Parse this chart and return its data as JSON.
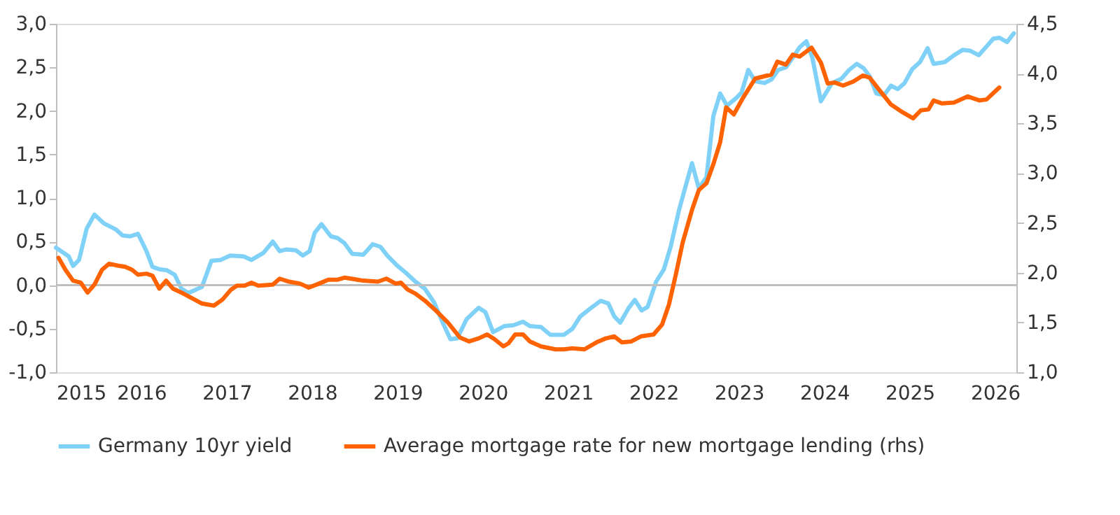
{
  "chart_data": {
    "type": "line",
    "legend": "bottom",
    "line_style": "solid",
    "marker": "none",
    "xlim": [
      2015,
      2026.25
    ],
    "xticks": [
      2015,
      2016,
      2017,
      2018,
      2019,
      2020,
      2021,
      2022,
      2023,
      2024,
      2025,
      2026
    ],
    "ylim": [
      -1.0,
      3.0
    ],
    "yticks": [
      {
        "value": -1.0,
        "label": "-1,0"
      },
      {
        "value": -0.5,
        "label": "-0,5"
      },
      {
        "value": 0.0,
        "label": "0,0"
      },
      {
        "value": 0.5,
        "label": "0,5"
      },
      {
        "value": 1.0,
        "label": "1,0"
      },
      {
        "value": 1.5,
        "label": "1,5"
      },
      {
        "value": 2.0,
        "label": "2,0"
      },
      {
        "value": 2.5,
        "label": "2,5"
      },
      {
        "value": 3.0,
        "label": "3,0"
      }
    ],
    "y2lim": [
      1.0,
      4.5
    ],
    "y2ticks": [
      {
        "value": 1.0,
        "label": "1,0"
      },
      {
        "value": 1.5,
        "label": "1,5"
      },
      {
        "value": 2.0,
        "label": "2,0"
      },
      {
        "value": 2.5,
        "label": "2,5"
      },
      {
        "value": 3.0,
        "label": "3,0"
      },
      {
        "value": 3.5,
        "label": "3,5"
      },
      {
        "value": 4.0,
        "label": "4,0"
      },
      {
        "value": 4.5,
        "label": "4,5"
      }
    ],
    "ref_lines": [
      {
        "axis": "y",
        "value": 0,
        "label": null,
        "color": "#bfbfbf"
      }
    ],
    "series": [
      {
        "name": "Germany 10yr yield",
        "color": "#7fd1f7",
        "x": [
          2015.0,
          2015.15,
          2015.2,
          2015.27,
          2015.36,
          2015.45,
          2015.56,
          2015.7,
          2015.78,
          2015.87,
          2015.96,
          2016.06,
          2016.13,
          2016.22,
          2016.3,
          2016.39,
          2016.47,
          2016.55,
          2016.71,
          2016.82,
          2016.93,
          2017.04,
          2017.2,
          2017.29,
          2017.43,
          2017.54,
          2017.62,
          2017.7,
          2017.81,
          2017.89,
          2017.97,
          2018.03,
          2018.11,
          2018.22,
          2018.3,
          2018.38,
          2018.47,
          2018.6,
          2018.71,
          2018.8,
          2018.88,
          2018.99,
          2019.1,
          2019.21,
          2019.32,
          2019.43,
          2019.53,
          2019.62,
          2019.7,
          2019.81,
          2019.95,
          2020.03,
          2020.12,
          2020.25,
          2020.36,
          2020.47,
          2020.55,
          2020.68,
          2020.79,
          2020.95,
          2021.05,
          2021.14,
          2021.27,
          2021.38,
          2021.47,
          2021.54,
          2021.61,
          2021.71,
          2021.78,
          2021.86,
          2021.93,
          2022.03,
          2022.12,
          2022.2,
          2022.3,
          2022.45,
          2022.53,
          2022.62,
          2022.7,
          2022.78,
          2022.86,
          2022.97,
          2023.03,
          2023.11,
          2023.19,
          2023.3,
          2023.38,
          2023.46,
          2023.55,
          2023.63,
          2023.71,
          2023.79,
          2023.86,
          2023.96,
          2024.09,
          2024.2,
          2024.29,
          2024.38,
          2024.46,
          2024.53,
          2024.61,
          2024.7,
          2024.78,
          2024.86,
          2024.94,
          2025.03,
          2025.12,
          2025.21,
          2025.28,
          2025.41,
          2025.52,
          2025.62,
          2025.71,
          2025.81,
          2025.9,
          2025.98,
          2026.05,
          2026.14,
          2026.22
        ],
        "values": [
          0.43,
          0.33,
          0.22,
          0.29,
          0.65,
          0.81,
          0.71,
          0.64,
          0.57,
          0.56,
          0.59,
          0.39,
          0.21,
          0.18,
          0.17,
          0.12,
          -0.04,
          -0.09,
          -0.02,
          0.28,
          0.29,
          0.34,
          0.33,
          0.29,
          0.37,
          0.5,
          0.39,
          0.41,
          0.4,
          0.34,
          0.39,
          0.6,
          0.7,
          0.56,
          0.54,
          0.48,
          0.36,
          0.35,
          0.47,
          0.44,
          0.34,
          0.23,
          0.14,
          0.04,
          -0.04,
          -0.2,
          -0.43,
          -0.62,
          -0.61,
          -0.39,
          -0.26,
          -0.31,
          -0.54,
          -0.47,
          -0.46,
          -0.42,
          -0.47,
          -0.48,
          -0.57,
          -0.57,
          -0.5,
          -0.36,
          -0.26,
          -0.18,
          -0.21,
          -0.36,
          -0.43,
          -0.26,
          -0.17,
          -0.29,
          -0.25,
          0.04,
          0.18,
          0.44,
          0.87,
          1.4,
          1.11,
          1.24,
          1.94,
          2.2,
          2.06,
          2.15,
          2.21,
          2.47,
          2.34,
          2.32,
          2.36,
          2.47,
          2.5,
          2.61,
          2.73,
          2.8,
          2.61,
          2.11,
          2.32,
          2.37,
          2.47,
          2.54,
          2.49,
          2.4,
          2.2,
          2.18,
          2.29,
          2.25,
          2.32,
          2.48,
          2.56,
          2.72,
          2.54,
          2.56,
          2.64,
          2.7,
          2.69,
          2.64,
          2.74,
          2.83,
          2.84,
          2.79,
          2.89
        ]
      },
      {
        "name": "Average mortgage rate for new mortgage lending (rhs)",
        "color": "#ff6200",
        "axis": "y2",
        "x": [
          2015.03,
          2015.11,
          2015.2,
          2015.29,
          2015.37,
          2015.45,
          2015.54,
          2015.62,
          2015.73,
          2015.81,
          2015.89,
          2015.96,
          2016.06,
          2016.13,
          2016.21,
          2016.29,
          2016.37,
          2016.47,
          2016.58,
          2016.71,
          2016.85,
          2016.95,
          2017.05,
          2017.12,
          2017.21,
          2017.29,
          2017.37,
          2017.54,
          2017.62,
          2017.73,
          2017.86,
          2017.96,
          2018.08,
          2018.19,
          2018.3,
          2018.38,
          2018.6,
          2018.77,
          2018.87,
          2018.98,
          2019.04,
          2019.12,
          2019.21,
          2019.32,
          2019.45,
          2019.59,
          2019.73,
          2019.84,
          2019.95,
          2020.05,
          2020.14,
          2020.24,
          2020.3,
          2020.38,
          2020.47,
          2020.55,
          2020.68,
          2020.85,
          2020.95,
          2021.04,
          2021.19,
          2021.33,
          2021.44,
          2021.54,
          2021.63,
          2021.74,
          2021.85,
          2022.0,
          2022.1,
          2022.18,
          2022.26,
          2022.34,
          2022.45,
          2022.53,
          2022.62,
          2022.7,
          2022.78,
          2022.85,
          2022.94,
          2023.05,
          2023.19,
          2023.33,
          2023.38,
          2023.45,
          2023.55,
          2023.63,
          2023.71,
          2023.85,
          2023.96,
          2024.04,
          2024.12,
          2024.22,
          2024.34,
          2024.45,
          2024.53,
          2024.64,
          2024.78,
          2024.92,
          2025.04,
          2025.13,
          2025.22,
          2025.28,
          2025.38,
          2025.52,
          2025.68,
          2025.82,
          2025.9,
          2026.05
        ],
        "values": [
          2.15,
          2.03,
          1.92,
          1.9,
          1.8,
          1.88,
          2.03,
          2.09,
          2.07,
          2.06,
          2.03,
          1.98,
          1.99,
          1.97,
          1.84,
          1.92,
          1.84,
          1.8,
          1.75,
          1.69,
          1.67,
          1.73,
          1.83,
          1.87,
          1.87,
          1.9,
          1.87,
          1.88,
          1.94,
          1.91,
          1.89,
          1.85,
          1.89,
          1.93,
          1.93,
          1.95,
          1.92,
          1.91,
          1.94,
          1.89,
          1.9,
          1.83,
          1.79,
          1.72,
          1.62,
          1.5,
          1.35,
          1.31,
          1.34,
          1.38,
          1.33,
          1.26,
          1.29,
          1.38,
          1.38,
          1.31,
          1.26,
          1.23,
          1.23,
          1.24,
          1.23,
          1.3,
          1.34,
          1.36,
          1.3,
          1.31,
          1.36,
          1.38,
          1.48,
          1.68,
          1.98,
          2.3,
          2.63,
          2.83,
          2.9,
          3.09,
          3.31,
          3.66,
          3.59,
          3.76,
          3.95,
          3.98,
          3.99,
          4.12,
          4.09,
          4.19,
          4.17,
          4.26,
          4.11,
          3.9,
          3.91,
          3.88,
          3.92,
          3.98,
          3.96,
          3.84,
          3.69,
          3.61,
          3.55,
          3.63,
          3.64,
          3.73,
          3.7,
          3.71,
          3.77,
          3.73,
          3.74,
          3.86
        ]
      }
    ]
  }
}
